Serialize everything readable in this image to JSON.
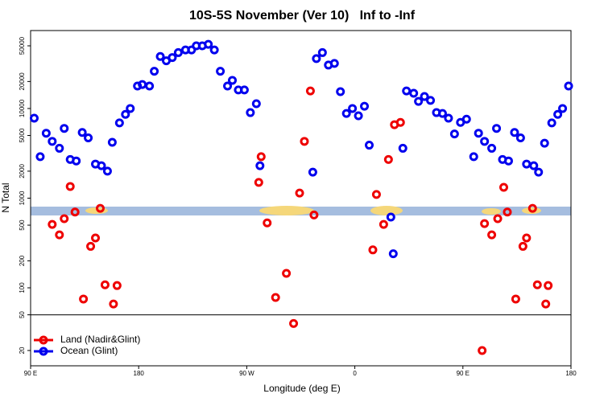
{
  "chart_data": {
    "type": "scatter",
    "title": "10S-5S November (Ver 10)   Inf to -Inf",
    "x_label": "Longitude (deg E)",
    "y_label": "N Total",
    "log_y": true,
    "xlim": [
      90,
      540
    ],
    "ylim": [
      13.5,
      74000
    ],
    "xticks": [
      {
        "value": 90,
        "label": "90 E"
      },
      180,
      {
        "value": 270,
        "label": "90 W"
      },
      {
        "value": 360,
        "label": "0"
      },
      {
        "value": 450,
        "label": "90 E"
      },
      {
        "value": 540,
        "label": "180"
      }
    ],
    "yticks": [
      20,
      50,
      100,
      200,
      500,
      1000,
      2000,
      5000,
      10000,
      20000,
      50000
    ],
    "hline": 50,
    "legend": "bottom-left",
    "series": [
      {
        "name": "Land (Nadir&Glint)",
        "color": "#ee0000",
        "x": [
          108,
          114,
          118,
          123,
          127,
          134,
          140,
          144,
          148,
          152,
          159,
          162,
          280,
          282,
          287,
          294,
          303,
          309,
          314,
          318,
          323,
          326,
          375,
          378,
          384,
          388,
          393,
          398,
          466,
          468,
          474,
          479,
          484,
          487,
          494,
          500,
          503,
          508,
          512,
          519,
          521
        ],
        "values": [
          510,
          390,
          590,
          1350,
          700,
          75,
          290,
          360,
          770,
          108,
          66,
          106,
          1500,
          2900,
          530,
          78,
          145,
          40,
          1140,
          4300,
          15700,
          650,
          265,
          1100,
          510,
          2700,
          6600,
          7000,
          20,
          520,
          390,
          590,
          1320,
          700,
          75,
          290,
          360,
          770,
          108,
          66,
          106
        ]
      },
      {
        "name": "Ocean (Glint)",
        "color": "#0000ee",
        "x": [
          93,
          98,
          103,
          108,
          114,
          118,
          123,
          128,
          133,
          138,
          144,
          149,
          154,
          158,
          164,
          169,
          173,
          179,
          183,
          189,
          193,
          198,
          203,
          208,
          213,
          219,
          224,
          228,
          233,
          238,
          243,
          248,
          254,
          258,
          263,
          268,
          273,
          278,
          281,
          325,
          328,
          333,
          338,
          343,
          348,
          353,
          358,
          363,
          368,
          372,
          390,
          392,
          400,
          403,
          409,
          413,
          418,
          423,
          428,
          433,
          438,
          443,
          448,
          453,
          459,
          463,
          468,
          474,
          478,
          483,
          488,
          493,
          498,
          503,
          509,
          513,
          518,
          524,
          529,
          533,
          538
        ],
        "values": [
          7800,
          2900,
          5300,
          4300,
          3600,
          6000,
          2700,
          2600,
          5400,
          4700,
          2400,
          2300,
          2000,
          4200,
          6900,
          8600,
          10000,
          17800,
          18500,
          17800,
          26000,
          38000,
          34000,
          37000,
          42000,
          45000,
          45000,
          50000,
          50000,
          52000,
          45000,
          26000,
          17800,
          20600,
          16100,
          16100,
          9000,
          11300,
          2300,
          1950,
          36000,
          42000,
          30500,
          31800,
          15400,
          8800,
          10000,
          8300,
          10600,
          3900,
          615,
          240,
          3600,
          15700,
          14800,
          12000,
          13600,
          12300,
          9000,
          8800,
          7800,
          5200,
          7000,
          7600,
          2900,
          5300,
          4300,
          3600,
          6000,
          2700,
          2600,
          5400,
          4700,
          2400,
          2300,
          1950,
          4100,
          6900,
          8600,
          10000,
          17800
        ]
      }
    ]
  }
}
